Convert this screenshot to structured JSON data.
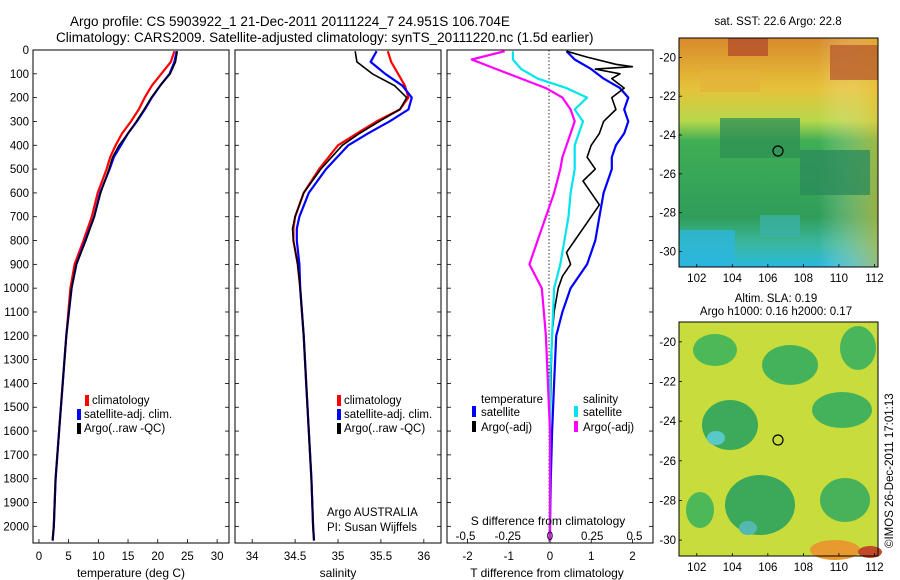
{
  "title": {
    "line1": "Argo profile: CS 5903922_1 21-Dec-2011 20111224_7 24.951S 106.704E",
    "line2": "Climatology: CARS2009. Satellite-adjusted climatology: synTS_20111220.nc (1.5d earlier)"
  },
  "colors": {
    "climatology": "#ff0000",
    "satellite": "#0000ff",
    "argo": "#000000",
    "sat_salinity": "#00e5ee",
    "argo_salinity": "#ff00ff"
  },
  "depth_axis": {
    "ticks": [
      "0",
      "100",
      "200",
      "300",
      "400",
      "500",
      "600",
      "700",
      "800",
      "900",
      "1000",
      "1100",
      "1200",
      "1300",
      "1400",
      "1500",
      "1600",
      "1700",
      "1800",
      "1900",
      "2000"
    ]
  },
  "chart_data": [
    {
      "type": "line",
      "xlabel": "temperature (deg C)",
      "xlim": [
        -1,
        32
      ],
      "ylim": [
        2070,
        0
      ],
      "xticks": [
        "0",
        "5",
        "10",
        "15",
        "20",
        "25",
        "30"
      ],
      "legend": {
        "placement": "bottom-left",
        "entries": [
          "climatology",
          "satellite-adj. clim.",
          "Argo(..raw -QC)"
        ]
      },
      "series": [
        {
          "name": "climatology",
          "color": "#ff0000",
          "width": 2.2,
          "y": [
            5,
            50,
            100,
            150,
            200,
            250,
            300,
            350,
            400,
            450,
            500,
            600,
            700,
            800,
            900,
            1000,
            1200,
            1400,
            1600,
            1800,
            2000,
            2060
          ],
          "x": [
            22.8,
            22.2,
            20.6,
            19.0,
            17.8,
            16.8,
            15.5,
            14.0,
            12.9,
            12.0,
            11.4,
            9.9,
            8.9,
            7.5,
            6.0,
            5.3,
            4.6,
            4.0,
            3.4,
            2.8,
            2.5,
            2.3
          ]
        },
        {
          "name": "satellite-adj. clim.",
          "color": "#0000ff",
          "width": 2.2,
          "y": [
            5,
            50,
            100,
            150,
            200,
            250,
            300,
            350,
            400,
            450,
            500,
            600,
            700,
            800,
            900,
            1000,
            1200,
            1400,
            1600,
            1800,
            2000,
            2060
          ],
          "x": [
            23.2,
            22.8,
            22.0,
            20.4,
            19.0,
            17.8,
            16.5,
            15.0,
            13.8,
            12.6,
            11.9,
            10.3,
            9.3,
            7.8,
            6.3,
            5.5,
            4.6,
            4.0,
            3.4,
            2.8,
            2.5,
            2.3
          ]
        },
        {
          "name": "Argo(..raw -QC)",
          "color": "#000000",
          "width": 1.6,
          "y": [
            5,
            50,
            100,
            150,
            200,
            250,
            300,
            350,
            400,
            450,
            500,
            600,
            700,
            800,
            900,
            1000,
            1200,
            1400,
            1600,
            1800,
            2000,
            2060
          ],
          "x": [
            23.3,
            23.0,
            22.1,
            20.4,
            18.9,
            17.7,
            16.4,
            15.0,
            13.5,
            12.4,
            11.8,
            10.4,
            9.3,
            7.9,
            6.3,
            5.5,
            4.6,
            4.0,
            3.4,
            2.8,
            2.5,
            2.3
          ]
        }
      ]
    },
    {
      "type": "line",
      "xlabel": "salinity",
      "xlim": [
        33.8,
        36.2
      ],
      "ylim": [
        2070,
        0
      ],
      "xticks": [
        "34",
        "34.5",
        "35",
        "35.5",
        "36"
      ],
      "legend": {
        "placement": "bottom-right",
        "entries": [
          "climatology",
          "satellite-adj. clim.",
          "Argo(..raw -QC)"
        ]
      },
      "annotation": {
        "line1": "Argo AUSTRALIA",
        "line2": "PI: Susan Wijffels"
      },
      "series": [
        {
          "name": "climatology",
          "color": "#ff0000",
          "width": 2.2,
          "y": [
            5,
            50,
            100,
            150,
            200,
            250,
            300,
            350,
            400,
            500,
            600,
            700,
            750,
            800,
            900,
            1000,
            1200,
            1400,
            1600,
            1800,
            2000,
            2060
          ],
          "x": [
            35.58,
            35.62,
            35.7,
            35.78,
            35.82,
            35.72,
            35.45,
            35.22,
            35.0,
            34.78,
            34.6,
            34.5,
            34.48,
            34.48,
            34.53,
            34.56,
            34.6,
            34.63,
            34.66,
            34.69,
            34.71,
            34.72
          ]
        },
        {
          "name": "satellite-adj. clim.",
          "color": "#0000ff",
          "width": 2.2,
          "y": [
            5,
            50,
            100,
            150,
            200,
            250,
            300,
            350,
            400,
            500,
            600,
            700,
            750,
            800,
            900,
            1000,
            1200,
            1400,
            1600,
            1800,
            2000,
            2060
          ],
          "x": [
            35.45,
            35.38,
            35.55,
            35.75,
            35.86,
            35.82,
            35.6,
            35.35,
            35.12,
            34.86,
            34.66,
            34.55,
            34.52,
            34.52,
            34.55,
            34.56,
            34.6,
            34.63,
            34.66,
            34.69,
            34.71,
            34.72
          ]
        },
        {
          "name": "Argo(..raw -QC)",
          "color": "#000000",
          "width": 1.6,
          "y": [
            5,
            50,
            100,
            150,
            200,
            250,
            300,
            350,
            400,
            500,
            600,
            700,
            750,
            800,
            900,
            1000,
            1200,
            1400,
            1600,
            1800,
            2000,
            2060
          ],
          "x": [
            35.2,
            35.22,
            35.4,
            35.66,
            35.8,
            35.72,
            35.48,
            35.25,
            35.05,
            34.8,
            34.6,
            34.5,
            34.47,
            34.48,
            34.53,
            34.56,
            34.6,
            34.63,
            34.66,
            34.69,
            34.71,
            34.72
          ]
        }
      ]
    },
    {
      "type": "line",
      "xlabel": "T difference from climatology",
      "xlabel_top": "S difference from climatology",
      "xlim": [
        -2.5,
        2.5
      ],
      "ylim": [
        2070,
        0
      ],
      "xticks": [
        "-2",
        "-1",
        "0",
        "1",
        "2"
      ],
      "s_ticks": [
        "-0.5",
        "-0.25",
        "0",
        "0.25",
        "0.5"
      ],
      "legend": {
        "placement": "bottom",
        "temperature_title": "temperature",
        "salinity_title": "salinity",
        "temperature_entries": [
          "satellite",
          "Argo(-adj)"
        ],
        "salinity_entries": [
          "satellite",
          "Argo(-adj)"
        ]
      },
      "series": [
        {
          "name": "satellite",
          "color": "#0000ff",
          "width": 2.2,
          "y": [
            5,
            40,
            80,
            120,
            160,
            200,
            250,
            300,
            350,
            400,
            450,
            500,
            600,
            700,
            800,
            900,
            1000,
            1100,
            1200,
            1400,
            1600,
            1800,
            2000,
            2060
          ],
          "x": [
            0.4,
            0.6,
            1.0,
            1.3,
            1.7,
            1.9,
            1.8,
            1.9,
            1.8,
            1.6,
            1.5,
            1.5,
            1.3,
            1.2,
            1.1,
            0.9,
            0.5,
            0.3,
            0.15,
            0.1,
            0.05,
            0.02,
            0.0,
            0.0
          ]
        },
        {
          "name": "Argo(-adj)",
          "color": "#000000",
          "width": 1.6,
          "y": [
            5,
            30,
            60,
            70,
            80,
            100,
            120,
            160,
            200,
            250,
            300,
            350,
            400,
            450,
            500,
            550,
            600,
            650,
            700,
            750,
            800,
            850,
            900,
            950,
            1000,
            1100,
            1200,
            1400,
            1600,
            1800,
            2000,
            2060
          ],
          "x": [
            0.4,
            0.9,
            1.6,
            2.0,
            1.1,
            1.7,
            1.5,
            1.8,
            1.5,
            1.6,
            1.3,
            1.2,
            1.0,
            0.9,
            1.1,
            0.8,
            1.0,
            1.2,
            1.0,
            0.8,
            0.6,
            0.4,
            0.5,
            0.3,
            0.2,
            0.1,
            0.05,
            0.02,
            0.0,
            0.0,
            0.0,
            0.0
          ]
        },
        {
          "name": "satellite",
          "color": "#00e5ee",
          "width": 2.2,
          "y": [
            5,
            40,
            80,
            120,
            160,
            200,
            250,
            300,
            350,
            400,
            450,
            500,
            600,
            700,
            800,
            900,
            1000,
            1200,
            1400,
            1600,
            1800,
            2000,
            2060
          ],
          "x": [
            -0.9,
            -0.9,
            -0.7,
            -0.3,
            0.4,
            0.9,
            0.6,
            0.8,
            0.7,
            0.6,
            0.6,
            0.6,
            0.5,
            0.45,
            0.35,
            0.25,
            0.1,
            0.05,
            0.0,
            0.0,
            0.0,
            0.0,
            0.0
          ]
        },
        {
          "name": "Argo(-adj)",
          "color": "#ff00ff",
          "width": 2.2,
          "y": [
            5,
            40,
            80,
            120,
            160,
            200,
            250,
            300,
            350,
            400,
            450,
            500,
            600,
            700,
            800,
            900,
            1000,
            1200,
            1400,
            1600,
            1800,
            2000,
            2060
          ],
          "x": [
            -1.1,
            -1.9,
            -1.3,
            -0.7,
            -0.1,
            0.3,
            0.5,
            0.6,
            0.5,
            0.4,
            0.3,
            0.25,
            0.1,
            -0.1,
            -0.3,
            -0.5,
            -0.2,
            -0.1,
            -0.05,
            0.0,
            0.0,
            0.0,
            0.0
          ]
        }
      ]
    },
    {
      "type": "heatmap",
      "title": "sat. SST: 22.6  Argo: 22.8",
      "xticks": [
        "102",
        "104",
        "106",
        "108",
        "110",
        "112"
      ],
      "yticks": [
        "-20",
        "-22",
        "-24",
        "-26",
        "-28",
        "-30"
      ],
      "xlim": [
        101,
        112.2
      ],
      "ylim": [
        -30.8,
        -19
      ],
      "marker": {
        "lon": 106.7,
        "lat": -24.95
      }
    },
    {
      "type": "heatmap",
      "title": "Altim. SLA: 0.19",
      "subtitle": "Argo h1000: 0.16 h2000: 0.17",
      "xticks": [
        "102",
        "104",
        "106",
        "108",
        "110",
        "112"
      ],
      "yticks": [
        "-20",
        "-22",
        "-24",
        "-26",
        "-28",
        "-30"
      ],
      "xlim": [
        101,
        112.2
      ],
      "ylim": [
        -30.8,
        -19
      ],
      "marker": {
        "lon": 106.7,
        "lat": -24.95
      }
    }
  ],
  "footer_side": "©IMOS 26-Dec-2011 17:01:13"
}
